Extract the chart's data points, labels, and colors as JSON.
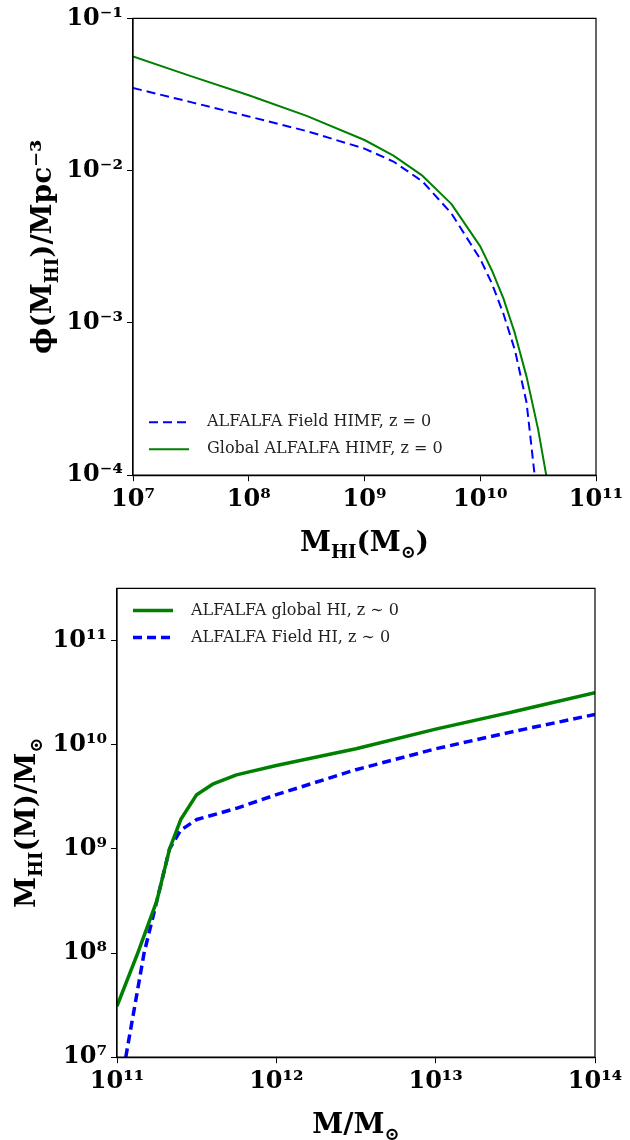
{
  "chart_data": [
    {
      "type": "line",
      "xlabel": "M$_{HI}$(M$_{⊙}$)",
      "ylabel": "ϕ(M$_{HI}$)/Mpc⁻³",
      "log": "xy",
      "xlim": [
        10000000,
        100000000000
      ],
      "ylim": [
        0.0001,
        0.1
      ],
      "xticks": [
        {
          "value": 10000000,
          "label": "10⁷"
        },
        {
          "value": 100000000,
          "label": "10⁸"
        },
        {
          "value": 1000000000,
          "label": "10⁹"
        },
        {
          "value": 10000000000,
          "label": "10¹⁰"
        },
        {
          "value": 100000000000,
          "label": "10¹¹"
        }
      ],
      "yticks": [
        {
          "value": 0.0001,
          "label": "10⁻⁴"
        },
        {
          "value": 0.001,
          "label": "10⁻³"
        },
        {
          "value": 0.01,
          "label": "10⁻²"
        },
        {
          "value": 0.1,
          "label": "10⁻¹"
        }
      ],
      "legend": "bottom left",
      "series": [
        {
          "name": "ALFALFA Field HIMF, z = 0",
          "color": "#0000ff",
          "line_style": "dashed",
          "x": [
            10000000,
            31622777,
            100000000,
            316227766,
            1000000000,
            1778279410,
            3162277660,
            5623413252,
            10000000000,
            12589254118,
            15848931925,
            19952623150,
            25118864315,
            29512092266
          ],
          "values": [
            0.0349,
            0.0282,
            0.0227,
            0.0182,
            0.01396,
            0.01148,
            0.00851,
            0.00525,
            0.00263,
            0.00182,
            0.00115,
            0.00066,
            0.0003,
            0.0001
          ]
        },
        {
          "name": "Global ALFALFA HIMF, z = 0",
          "color": "#008000",
          "line_style": "solid",
          "x": [
            10000000,
            31622777,
            100000000,
            316227766,
            1000000000,
            1778279410,
            3162277660,
            5623413252,
            10000000000,
            12589254118,
            15848931925,
            19952623150,
            25118864315,
            31622776602,
            37153522910
          ],
          "values": [
            0.0562,
            0.0418,
            0.0313,
            0.0229,
            0.0159,
            0.01256,
            0.00927,
            0.00605,
            0.00318,
            0.00222,
            0.00145,
            0.00085,
            0.000444,
            0.0002,
            0.0001
          ]
        }
      ]
    },
    {
      "type": "line",
      "xlabel": "M/M$_{⊙}$",
      "ylabel": "M$_{HI}$(M)/M$_{⊙}$",
      "log": "xy",
      "xlim": [
        100000000000,
        100000000000000
      ],
      "ylim": [
        10000000,
        316000000000
      ],
      "xticks": [
        {
          "value": 100000000000,
          "label": "10¹¹"
        },
        {
          "value": 1000000000000,
          "label": "10¹²"
        },
        {
          "value": 10000000000000,
          "label": "10¹³"
        },
        {
          "value": 100000000000000,
          "label": "10¹⁴"
        }
      ],
      "yticks": [
        {
          "value": 10000000,
          "label": "10⁷"
        },
        {
          "value": 100000000,
          "label": "10⁸"
        },
        {
          "value": 1000000000,
          "label": "10⁹"
        },
        {
          "value": 10000000000,
          "label": "10¹⁰"
        },
        {
          "value": 100000000000,
          "label": "10¹¹"
        }
      ],
      "legend": "top left",
      "series": [
        {
          "name": "ALFALFA global HI, z ∼ 0",
          "color": "#008000",
          "line_style": "solid",
          "x": [
            100000000000,
            134900000000,
            177800000000,
            213800000000,
            251200000000,
            316200000000,
            398100000000,
            562300000000,
            1000000000000,
            3162000000000,
            10000000000000,
            31620000000000,
            100000000000000
          ],
          "values": [
            30900000,
            100000000,
            316000000,
            1000000000,
            1910000000,
            3310000000,
            4170000000,
            5130000000,
            6310000000,
            9120000000,
            14100000000,
            20900000000,
            31600000000
          ]
        },
        {
          "name": "ALFALFA Field HI, z ∼ 0",
          "color": "#0000ff",
          "line_style": "dashed",
          "x": [
            113500000000,
            147900000000,
            177800000000,
            213800000000,
            251200000000,
            316200000000,
            562300000000,
            1000000000000,
            3162000000000,
            10000000000000,
            31620000000000,
            100000000000000
          ],
          "values": [
            10000000,
            100000000,
            316000000,
            1000000000,
            1510000000,
            1910000000,
            2450000000,
            3310000000,
            5750000000,
            9120000000,
            13500000000,
            19500000000
          ]
        }
      ]
    }
  ]
}
